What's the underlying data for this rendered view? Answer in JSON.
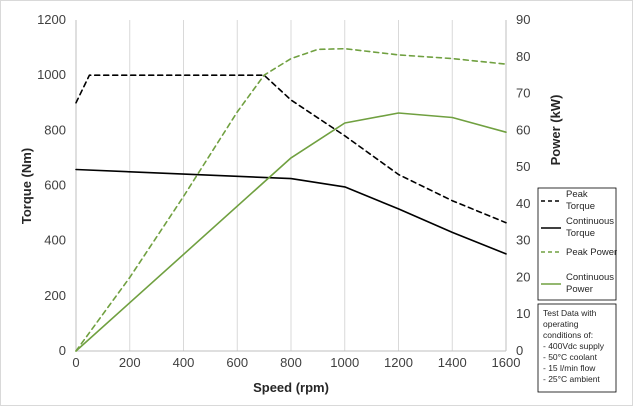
{
  "chart_data": {
    "type": "line",
    "title": "",
    "xlabel": "Speed (rpm)",
    "ylabel_left": "Torque (Nm)",
    "ylabel_right": "Power (kW)",
    "xlim": [
      0,
      1600
    ],
    "ylim_left": [
      0,
      1200
    ],
    "ylim_right": [
      0,
      90
    ],
    "x_ticks": [
      0,
      200,
      400,
      600,
      800,
      1000,
      1200,
      1400,
      1600
    ],
    "y_left_ticks": [
      0,
      200,
      400,
      600,
      800,
      1000,
      1200
    ],
    "y_right_ticks": [
      0,
      10,
      20,
      30,
      40,
      50,
      60,
      70,
      80,
      90
    ],
    "grid": "vertical",
    "legend_position": "right",
    "series": [
      {
        "name": "Peak Torque",
        "axis": "left",
        "color": "#000000",
        "dash": true,
        "x": [
          0,
          50,
          700,
          800,
          1000,
          1200,
          1400,
          1600
        ],
        "y": [
          900,
          1000,
          1000,
          910,
          780,
          640,
          545,
          465
        ]
      },
      {
        "name": "Continuous Torque",
        "axis": "left",
        "color": "#000000",
        "dash": false,
        "x": [
          0,
          800,
          1000,
          1200,
          1400,
          1600
        ],
        "y": [
          658,
          625,
          595,
          515,
          430,
          352
        ]
      },
      {
        "name": "Peak Power",
        "axis": "right",
        "color": "#70a040",
        "dash": true,
        "x": [
          0,
          200,
          400,
          600,
          700,
          800,
          900,
          1000,
          1200,
          1400,
          1600
        ],
        "y": [
          0,
          20,
          42,
          65,
          75,
          79.5,
          82,
          82.2,
          80.5,
          79.5,
          78
        ]
      },
      {
        "name": "Continuous Power",
        "axis": "right",
        "color": "#70a040",
        "dash": false,
        "x": [
          0,
          800,
          1000,
          1200,
          1400,
          1600
        ],
        "y": [
          0,
          52.5,
          62,
          64.7,
          63.5,
          59.5
        ]
      }
    ],
    "note": {
      "lines": [
        "Test Data with",
        "operating",
        "conditions of:",
        "- 400Vdc supply",
        "- 50°C coolant",
        "- 15 l/min flow",
        "- 25°C ambient"
      ]
    }
  },
  "legend_labels": {
    "peak_torque": [
      "Peak",
      "Torque"
    ],
    "continuous_torque": [
      "Continuous",
      "Torque"
    ],
    "peak_power": [
      "Peak Power"
    ],
    "continuous_power": [
      "Continuous",
      "Power"
    ]
  }
}
